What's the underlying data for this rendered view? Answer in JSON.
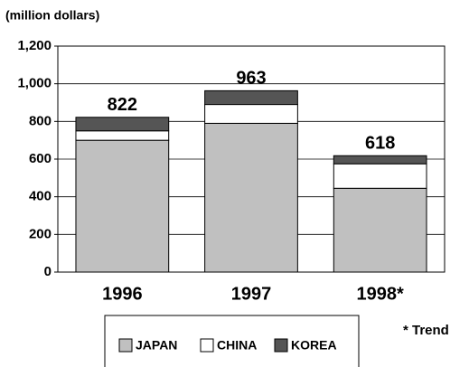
{
  "chart_data": {
    "type": "stacked_bar",
    "y_axis_label": "(million dollars)",
    "categories": [
      "1996",
      "1997",
      "1998*"
    ],
    "series": [
      {
        "name": "JAPAN",
        "color": "#c0c0c0",
        "values": [
          700,
          790,
          445
        ]
      },
      {
        "name": "CHINA",
        "color": "#ffffff",
        "values": [
          50,
          100,
          130
        ]
      },
      {
        "name": "KOREA",
        "color": "#555555",
        "values": [
          72,
          73,
          43
        ]
      }
    ],
    "totals": [
      822,
      963,
      618
    ],
    "ylim": [
      0,
      1200
    ],
    "yticks": [
      0,
      200,
      400,
      600,
      800,
      {
        "value": 1000,
        "label": "1,000"
      },
      {
        "value": 1200,
        "label": "1,200"
      }
    ],
    "grid": true,
    "annotation": "* Trend"
  }
}
